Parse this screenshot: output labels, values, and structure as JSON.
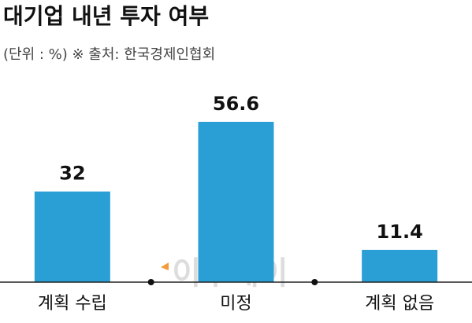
{
  "chart_data": {
    "type": "bar",
    "title": "대기업 내년 투자 여부",
    "subtitle": "(단위 : %) ※ 출처: 한국경제인협회",
    "categories": [
      "계획 수립",
      "미정",
      "계획 없음"
    ],
    "values": [
      32,
      56.6,
      11.4
    ],
    "color": "#2a9fd6",
    "watermark": "이투데이"
  }
}
